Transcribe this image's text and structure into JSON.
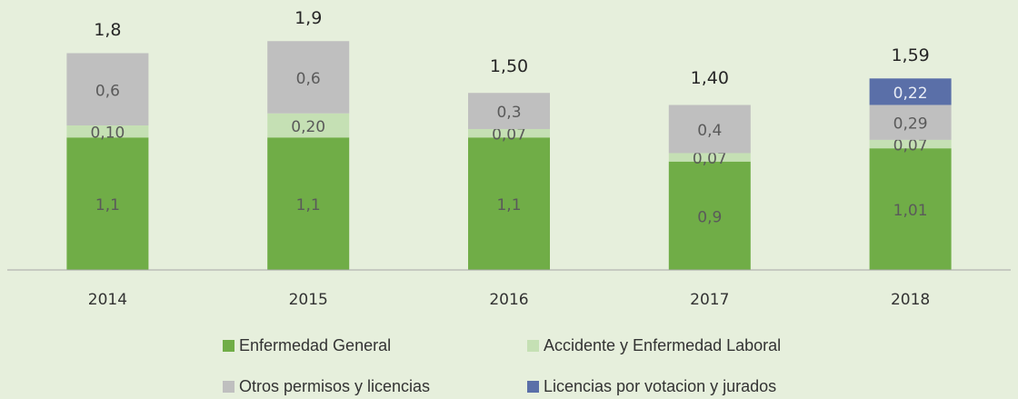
{
  "chart_data": {
    "type": "stacked_bar",
    "categories": [
      "2014",
      "2015",
      "2016",
      "2017",
      "2018"
    ],
    "series": [
      {
        "name": "Enfermedad General",
        "color": "#70ad47",
        "values": [
          1.1,
          1.1,
          1.1,
          0.9,
          1.01
        ],
        "value_labels": [
          "1,1",
          "1,1",
          "1,1",
          "0,9",
          "1,01"
        ]
      },
      {
        "name": "Accidente y Enfermedad Laboral",
        "color": "#c5e0b4",
        "values": [
          0.1,
          0.2,
          0.07,
          0.07,
          0.07
        ],
        "value_labels": [
          "0,10",
          "0,20",
          "0,07",
          "0,07",
          "0,07"
        ]
      },
      {
        "name": "Otros permisos y licencias",
        "color": "#bfbfbf",
        "values": [
          0.6,
          0.6,
          0.3,
          0.4,
          0.29
        ],
        "value_labels": [
          "0,6",
          "0,6",
          "0,3",
          "0,4",
          "0,29"
        ]
      },
      {
        "name": "Licencias por votacion y jurados",
        "color": "#5a6fa8",
        "values": [
          null,
          null,
          null,
          null,
          0.22
        ],
        "value_labels": [
          null,
          null,
          null,
          null,
          "0,22"
        ]
      }
    ],
    "totals": [
      1.8,
      1.9,
      1.5,
      1.4,
      1.59
    ],
    "total_labels": [
      "1,8",
      "1,9",
      "1,50",
      "1,40",
      "1,59"
    ],
    "ylim": [
      0,
      2
    ]
  }
}
